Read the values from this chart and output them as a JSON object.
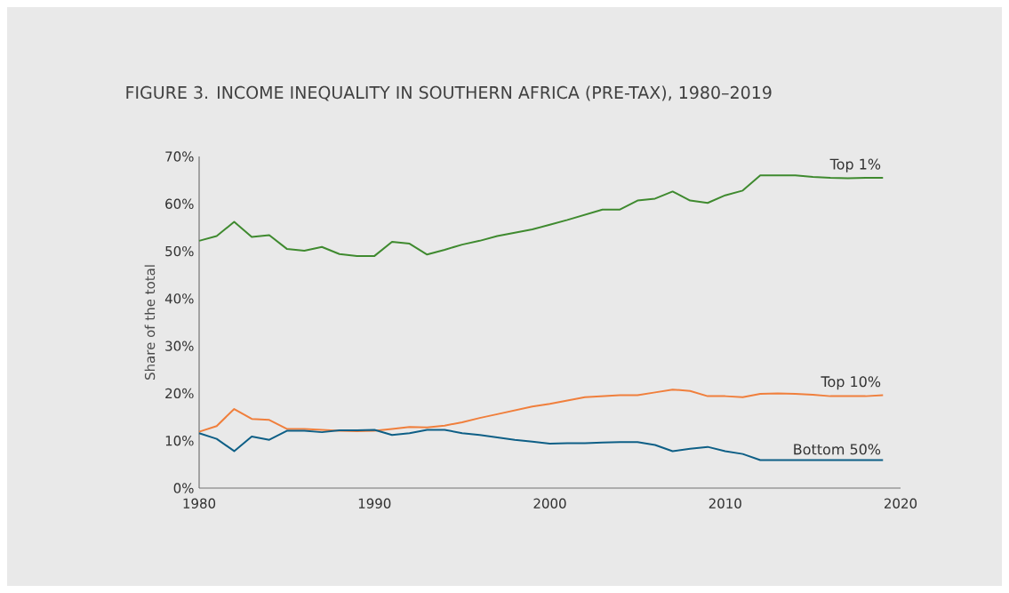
{
  "chart_data": {
    "type": "line",
    "title": "FIGURE 3. INCOME INEQUALITY IN SOUTHERN AFRICA (PRE-TAX), 1980–2019",
    "ylabel": "Share of the total",
    "x": [
      1980,
      1981,
      1982,
      1983,
      1984,
      1985,
      1986,
      1987,
      1988,
      1989,
      1990,
      1991,
      1992,
      1993,
      1994,
      1995,
      1996,
      1997,
      1998,
      1999,
      2000,
      2001,
      2002,
      2003,
      2004,
      2005,
      2006,
      2007,
      2008,
      2009,
      2010,
      2011,
      2012,
      2013,
      2014,
      2015,
      2016,
      2017,
      2018,
      2019
    ],
    "series": [
      {
        "name": "Top 1%",
        "color": "#3f8a2f",
        "values": [
          52.2,
          53.2,
          56.2,
          53,
          53.4,
          50.5,
          50.1,
          50.9,
          49.4,
          49,
          49,
          52,
          51.6,
          49.3,
          50.3,
          51.4,
          52.2,
          53.2,
          53.9,
          54.6,
          55.6,
          56.6,
          57.7,
          58.8,
          58.8,
          60.7,
          61.1,
          62.6,
          60.7,
          60.2,
          61.8,
          62.8,
          66,
          66,
          66,
          65.7,
          65.5,
          65.4,
          65.5,
          65.5
        ]
      },
      {
        "name": "Top 10%",
        "color": "#f07f3c",
        "values": [
          11.9,
          13.1,
          16.7,
          14.6,
          14.4,
          12.5,
          12.5,
          12.3,
          12.1,
          12,
          12.1,
          12.5,
          12.9,
          12.8,
          13.2,
          13.9,
          14.8,
          15.6,
          16.4,
          17.2,
          17.8,
          18.5,
          19.2,
          19.4,
          19.6,
          19.6,
          20.2,
          20.8,
          20.5,
          19.4,
          19.4,
          19.2,
          19.9,
          20,
          19.9,
          19.7,
          19.4,
          19.4,
          19.4,
          19.6
        ]
      },
      {
        "name": "Bottom 50%",
        "color": "#0e5f86",
        "values": [
          11.6,
          10.4,
          7.8,
          10.9,
          10.2,
          12.1,
          12.1,
          11.8,
          12.2,
          12.2,
          12.3,
          11.2,
          11.6,
          12.3,
          12.3,
          11.6,
          11.2,
          10.7,
          10.2,
          9.8,
          9.4,
          9.5,
          9.5,
          9.6,
          9.7,
          9.7,
          9.1,
          7.8,
          8.3,
          8.7,
          7.8,
          7.2,
          5.9,
          5.9,
          5.9,
          5.9,
          5.9,
          5.9,
          5.9,
          5.9
        ]
      }
    ],
    "xlim": [
      1980,
      2020
    ],
    "xticks": [
      1980,
      1990,
      2000,
      2010,
      2020
    ],
    "ylim": [
      0,
      70
    ],
    "yticks": [
      {
        "value": 0,
        "label": "0%"
      },
      {
        "value": 10,
        "label": "10%"
      },
      {
        "value": 20,
        "label": "20%"
      },
      {
        "value": 30,
        "label": "30%"
      },
      {
        "value": 40,
        "label": "40%"
      },
      {
        "value": 50,
        "label": "50%"
      },
      {
        "value": 60,
        "label": "60%"
      },
      {
        "value": 70,
        "label": "70%"
      }
    ],
    "grid": false,
    "legend": false,
    "marker": "none",
    "line_style": "solid"
  }
}
